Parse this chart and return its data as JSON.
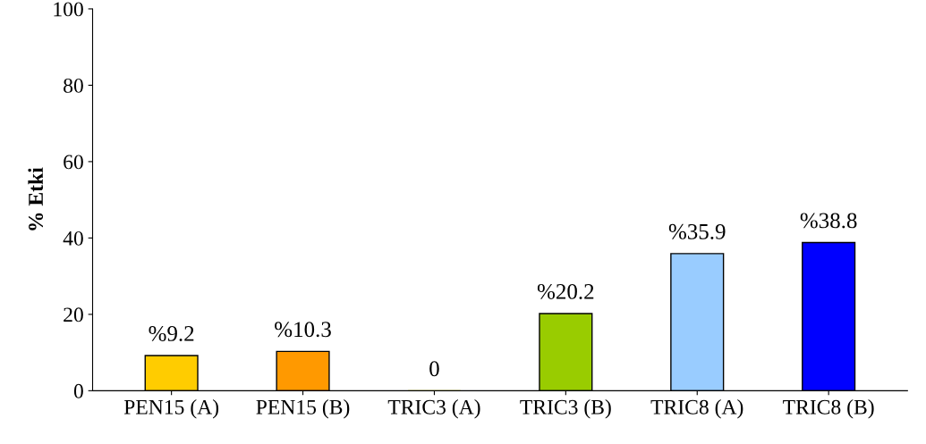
{
  "chart_data": {
    "type": "bar",
    "ylabel": "% Etki",
    "categories": [
      "PEN15 (A)",
      "PEN15 (B)",
      "TRIC3 (A)",
      "TRIC3 (B)",
      "TRIC8 (A)",
      "TRIC8 (B)"
    ],
    "values": [
      9.2,
      10.3,
      0,
      20.2,
      35.9,
      38.8
    ],
    "colors": [
      "#ffcc00",
      "#ff9900",
      "#cccc00",
      "#99cc00",
      "#99ccff",
      "#0000ff"
    ],
    "value_labels": [
      "%9.2",
      "%10.3",
      "0",
      "%20.2",
      "%35.9",
      "%38.8"
    ],
    "ylim": [
      0,
      100
    ],
    "yticks": [
      0,
      20,
      40,
      60,
      80,
      100
    ],
    "grid": false
  }
}
